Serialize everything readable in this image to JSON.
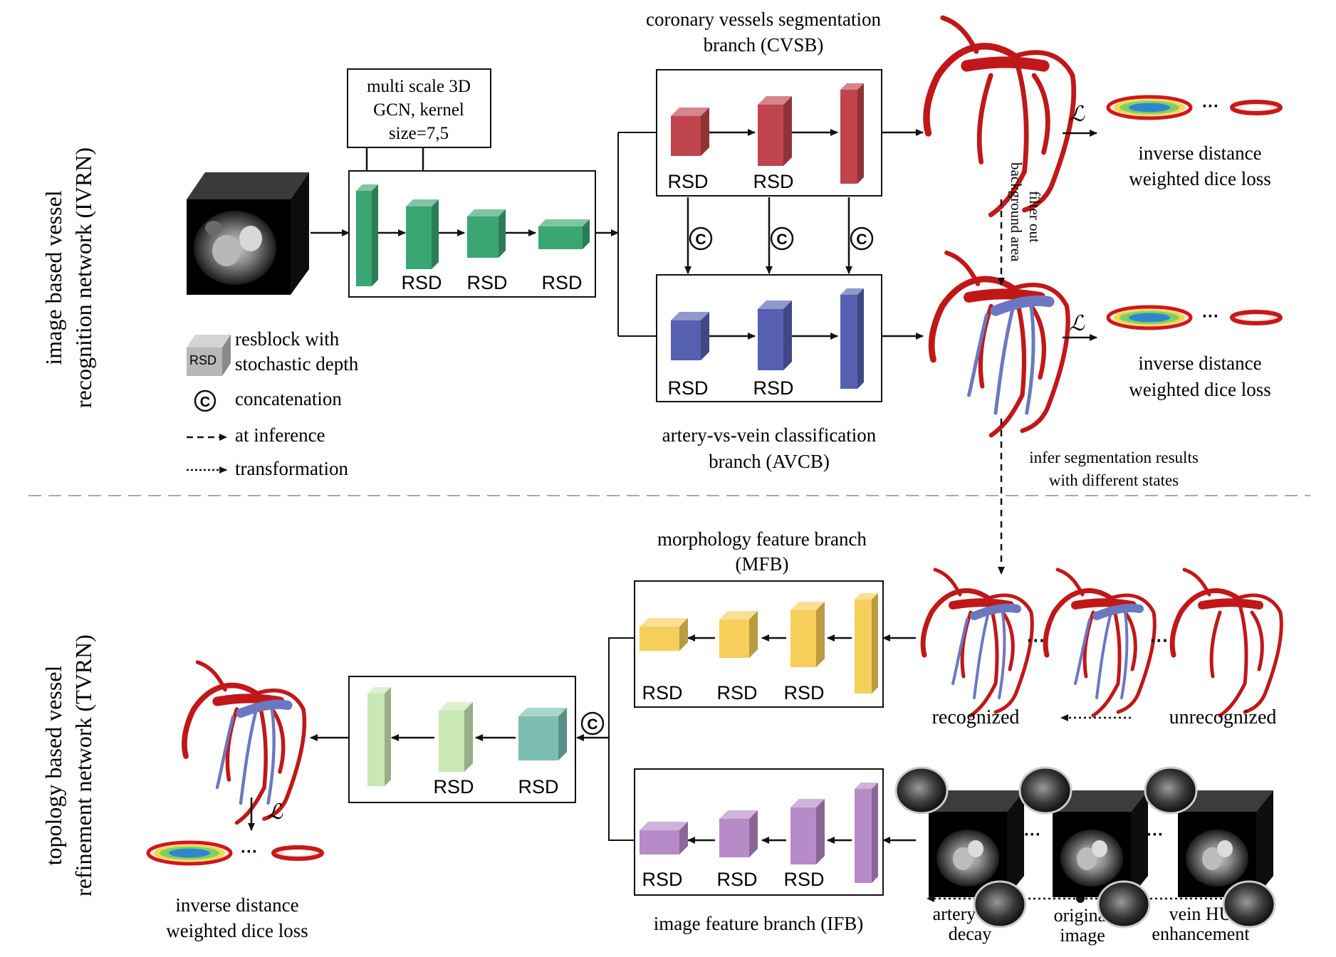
{
  "sections": {
    "top": {
      "line1": "image based vessel",
      "line2": "recognition network (IVRN)"
    },
    "bottom": {
      "line1": "topology based vessel",
      "line2": "refinement network (TVRN)"
    }
  },
  "gcn_note": {
    "line1": "multi scale 3D",
    "line2": "GCN,  kernel",
    "line3": "size=7,5"
  },
  "branches": {
    "cvsb": {
      "line1": "coronary vessels segmentation",
      "line2": "branch (CVSB)"
    },
    "avcb": {
      "line1": "artery-vs-vein classification",
      "line2": "branch (AVCB)"
    },
    "mfb": {
      "line1": "morphology feature branch",
      "line2": "(MFB)"
    },
    "ifb": {
      "line1": "image feature branch (IFB)"
    }
  },
  "block_label": "RSD",
  "loss_symbol": "ℒ",
  "concat_symbol": "C",
  "ellipsis": "···",
  "loss": {
    "line1": "inverse distance",
    "line2": "weighted dice loss"
  },
  "annotations": {
    "filter_line1": "filter out",
    "filter_line2": "background area",
    "infer_line1": "infer segmentation results",
    "infer_line2": "with different states",
    "recognized": "recognized",
    "unrecognized": "unrecognized",
    "artery_decay_line1": "artery HU",
    "artery_decay_line2": "decay",
    "original_line1": "original",
    "original_line2": "image",
    "vein_enh_line1": "vein HU",
    "vein_enh_line2": "enhancement"
  },
  "legend": {
    "rsd_icon": "RSD",
    "rsd_line1": "resblock with",
    "rsd_line2": "stochastic depth",
    "concat": "concatenation",
    "inference": "at inference",
    "transformation": "transformation"
  },
  "colors": {
    "encoder": "#3aa673",
    "cvsb": "#c0444c",
    "avcb": "#5560b0",
    "mfb": "#f6cf5a",
    "ifb": "#b78ac8",
    "refine": "#c9e8b4",
    "refine_teal": "#7cbfb2",
    "artery": "#c01818",
    "vein": "#6b78c0"
  }
}
